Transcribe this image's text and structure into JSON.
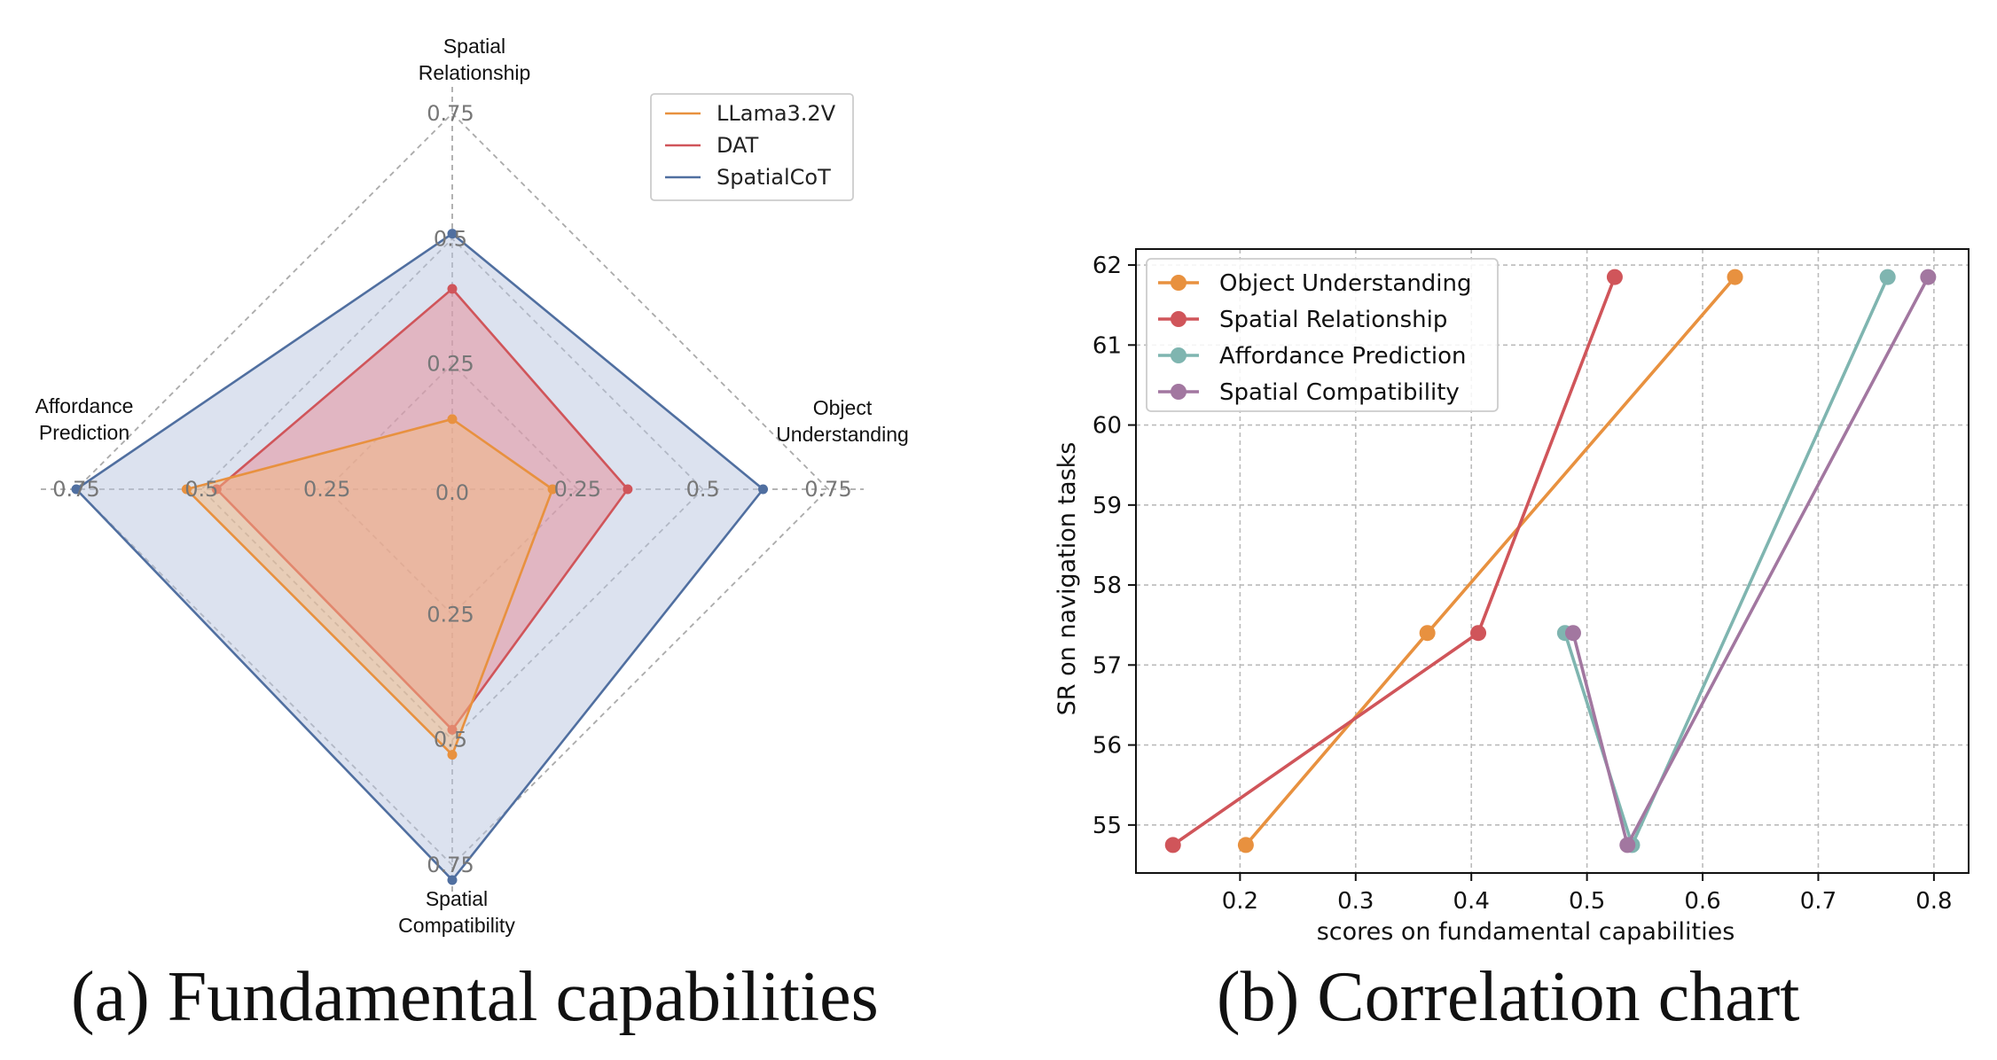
{
  "figure": {
    "caption_a": "(a) Fundamental capabilities",
    "caption_b": "(b) Correlation chart"
  },
  "chart_data": [
    {
      "type": "radar",
      "axes": [
        "Object Understanding",
        "Spatial Relationship",
        "Affordance Prediction",
        "Spatial Compatibility"
      ],
      "axis_labels": [
        [
          "Object",
          "Understanding"
        ],
        [
          "Spatial",
          "Relationship"
        ],
        [
          "Affordance",
          "Prediction"
        ],
        [
          "Spatial",
          "Compatibility"
        ]
      ],
      "range": [
        0,
        0.75
      ],
      "tick_values": [
        0,
        0.25,
        0.5,
        0.75
      ],
      "tick_labels": [
        "0.0",
        "0.25",
        "0.5",
        "0.75"
      ],
      "series": [
        {
          "name": "LLama3.2V",
          "color": "#e8913f",
          "values": [
            0.2,
            0.14,
            0.53,
            0.53
          ]
        },
        {
          "name": "DAT",
          "color": "#d0555a",
          "values": [
            0.35,
            0.4,
            0.47,
            0.48
          ]
        },
        {
          "name": "SpatialCoT",
          "color": "#506fa0",
          "values": [
            0.62,
            0.51,
            0.75,
            0.78
          ]
        }
      ],
      "fill_colors": [
        "#f4b880",
        "#e58a95",
        "#b9c6df"
      ],
      "legend": "top-right"
    },
    {
      "type": "line",
      "xlabel": "scores on fundamental capabilities",
      "ylabel": "SR on navigation tasks",
      "xlim": [
        0.11,
        0.83
      ],
      "ylim": [
        54.4,
        62.2
      ],
      "xticks": [
        0.2,
        0.3,
        0.4,
        0.5,
        0.6,
        0.7,
        0.8
      ],
      "yticks": [
        55,
        56,
        57,
        58,
        59,
        60,
        61,
        62
      ],
      "grid": true,
      "legend": "top-left",
      "series": [
        {
          "name": "Object Understanding",
          "color": "#e8913f",
          "points": [
            [
              0.205,
              54.75
            ],
            [
              0.362,
              57.4
            ],
            [
              0.628,
              61.85
            ]
          ]
        },
        {
          "name": "Spatial Relationship",
          "color": "#d0555a",
          "points": [
            [
              0.142,
              54.75
            ],
            [
              0.406,
              57.4
            ],
            [
              0.524,
              61.85
            ]
          ]
        },
        {
          "name": "Affordance Prediction",
          "color": "#7fb5b0",
          "points": [
            [
              0.481,
              57.4
            ],
            [
              0.539,
              54.75
            ],
            [
              0.76,
              61.85
            ]
          ]
        },
        {
          "name": "Spatial Compatibility",
          "color": "#a277a0",
          "points": [
            [
              0.488,
              57.4
            ],
            [
              0.535,
              54.75
            ],
            [
              0.795,
              61.85
            ]
          ]
        }
      ]
    }
  ]
}
